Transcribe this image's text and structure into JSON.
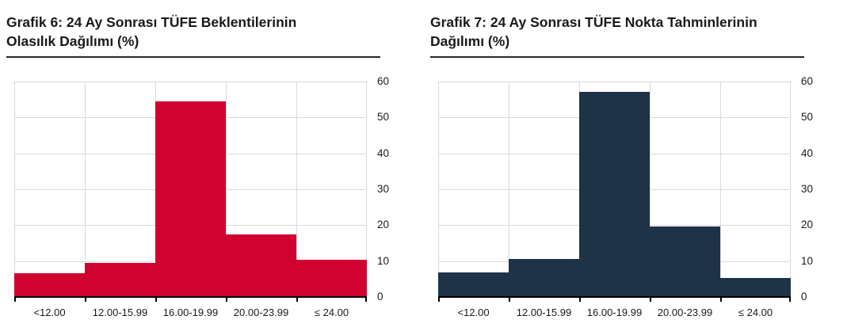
{
  "page": {
    "background": "#ffffff"
  },
  "chart_data": [
    {
      "type": "bar",
      "id": "grafik-6",
      "title": "Grafik 6: 24 Ay Sonrası TÜFE Beklentilerinin Olasılık Dağılımı (%)",
      "title_lines": [
        "Grafik 6: 24 Ay Sonrası TÜFE Beklentilerinin",
        "Olasılık Dağılımı (%)"
      ],
      "categories": [
        "<12.00",
        "12.00-15.99",
        "16.00-19.99",
        "20.00-23.99",
        "≤ 24.00"
      ],
      "values": [
        6.6,
        9.4,
        54.5,
        17.4,
        10.4
      ],
      "bar_color": "#d00230",
      "xlabel": "",
      "ylabel": "",
      "ylim": [
        0,
        60
      ],
      "yticks": [
        0,
        10,
        20,
        30,
        40,
        50,
        60
      ],
      "ytick_side": "right",
      "grid": "on",
      "grid_color": "#d9d9d9",
      "axis_color": "#000000",
      "legend": "none"
    },
    {
      "type": "bar",
      "id": "grafik-7",
      "title": "Grafik 7: 24 Ay Sonrası TÜFE Nokta Tahminlerinin Dağılımı (%)",
      "title_lines": [
        "Grafik 7: 24 Ay Sonrası TÜFE Nokta Tahminlerinin",
        "Dağılımı (%)"
      ],
      "categories": [
        "<12.00",
        "12.00-15.99",
        "16.00-19.99",
        "20.00-23.99",
        "≤ 24.00"
      ],
      "values": [
        6.9,
        10.7,
        57.2,
        19.6,
        5.2
      ],
      "bar_color": "#1e3347",
      "xlabel": "",
      "ylabel": "",
      "ylim": [
        0,
        60
      ],
      "yticks": [
        0,
        10,
        20,
        30,
        40,
        50,
        60
      ],
      "ytick_side": "right",
      "grid": "on",
      "grid_color": "#d9d9d9",
      "axis_color": "#000000",
      "legend": "none"
    }
  ]
}
